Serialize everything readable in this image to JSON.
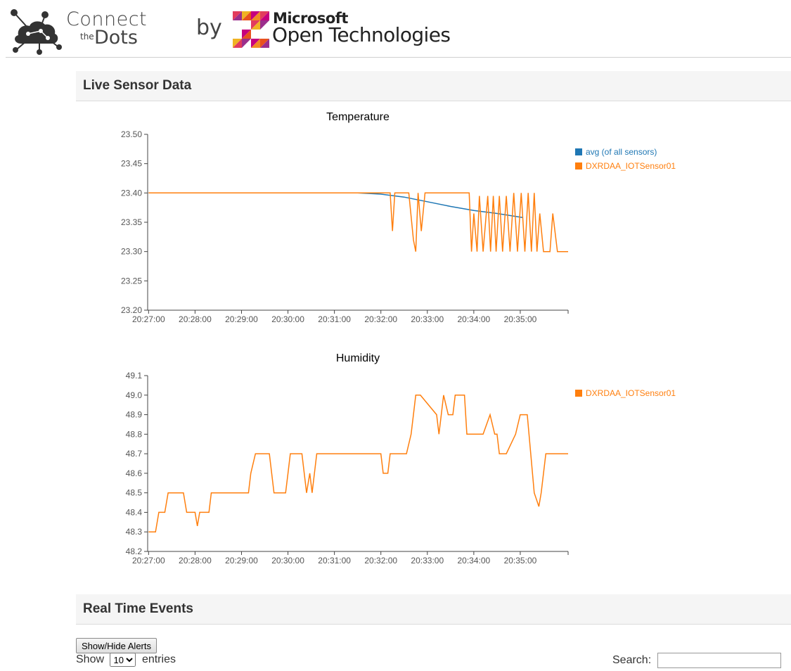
{
  "header": {
    "brand_connect": "Connect",
    "brand_the": "the",
    "brand_dots": "Dots",
    "by": "by",
    "ms_name": "Microsoft",
    "ms_sub": "Open Technologies"
  },
  "sections": {
    "live": "Live Sensor Data",
    "realtime": "Real Time Events"
  },
  "controls": {
    "show_hide_label": "Show/Hide Alerts",
    "show_label": "Show",
    "entries_value": "10",
    "entries_label": "entries",
    "search_label": "Search:",
    "search_value": ""
  },
  "colors": {
    "avg": "#1f77b4",
    "sensor": "#ff7f0e",
    "axis": "#444444",
    "legend_avg_text": "#1f77b4"
  },
  "chart_data": [
    {
      "type": "line",
      "title": "Temperature",
      "x_ticks": [
        "20:27:00",
        "20:28:00",
        "20:29:00",
        "20:30:00",
        "20:31:00",
        "20:32:00",
        "20:33:00",
        "20:34:00",
        "20:35:00"
      ],
      "y_ticks": [
        "23.20",
        "23.25",
        "23.30",
        "23.35",
        "23.40",
        "23.45",
        "23.50"
      ],
      "xlim": [
        -0.02,
        9.03
      ],
      "ylim": [
        23.2,
        23.5
      ],
      "legend": "right",
      "series": [
        {
          "name": "avg (of all sensors)",
          "color": "#1f77b4",
          "x": [
            0,
            1,
            2,
            3,
            4,
            4.5,
            5,
            5.5,
            6,
            6.5,
            7,
            7.5,
            8.05
          ],
          "y": [
            23.4,
            23.4,
            23.4,
            23.4,
            23.4,
            23.4,
            23.398,
            23.393,
            23.385,
            23.377,
            23.37,
            23.365,
            23.358
          ]
        },
        {
          "name": "DXRDAA_IOTSensor01",
          "color": "#ff7f0e",
          "x": [
            0,
            4,
            5.2,
            5.25,
            5.3,
            5.35,
            5.4,
            5.6,
            5.7,
            5.75,
            5.8,
            5.87,
            5.95,
            6.0,
            6.05,
            6.12,
            6.15,
            6.25,
            6.33,
            6.4,
            6.45,
            6.6,
            6.9,
            6.95,
            7.0,
            7.07,
            7.12,
            7.2,
            7.3,
            7.36,
            7.42,
            7.48,
            7.55,
            7.62,
            7.7,
            7.78,
            7.86,
            7.94,
            8.02,
            8.1,
            8.17,
            8.24,
            8.3,
            8.36,
            8.42,
            8.5,
            8.58,
            8.64,
            8.7,
            8.8,
            8.9,
            9.03
          ],
          "y": [
            23.4,
            23.4,
            23.4,
            23.335,
            23.4,
            23.4,
            23.4,
            23.4,
            23.32,
            23.3,
            23.4,
            23.335,
            23.4,
            23.4,
            23.4,
            23.4,
            23.4,
            23.4,
            23.4,
            23.4,
            23.4,
            23.4,
            23.4,
            23.3,
            23.365,
            23.3,
            23.395,
            23.3,
            23.395,
            23.3,
            23.395,
            23.3,
            23.395,
            23.3,
            23.395,
            23.3,
            23.4,
            23.3,
            23.4,
            23.3,
            23.4,
            23.3,
            23.4,
            23.3,
            23.365,
            23.3,
            23.3,
            23.3,
            23.365,
            23.3,
            23.3,
            23.3
          ]
        }
      ]
    },
    {
      "type": "line",
      "title": "Humidity",
      "x_ticks": [
        "20:27:00",
        "20:28:00",
        "20:29:00",
        "20:30:00",
        "20:31:00",
        "20:32:00",
        "20:33:00",
        "20:34:00",
        "20:35:00"
      ],
      "y_ticks": [
        "48.2",
        "48.3",
        "48.4",
        "48.5",
        "48.6",
        "48.7",
        "48.8",
        "48.9",
        "49.0",
        "49.1"
      ],
      "xlim": [
        -0.02,
        9.03
      ],
      "ylim": [
        48.2,
        49.1
      ],
      "legend": "right",
      "series": [
        {
          "name": "DXRDAA_IOTSensor01",
          "color": "#ff7f0e",
          "x": [
            0,
            0.15,
            0.22,
            0.35,
            0.42,
            0.75,
            0.82,
            1.0,
            1.05,
            1.1,
            1.15,
            1.3,
            1.35,
            1.4,
            1.45,
            2.15,
            2.2,
            2.3,
            2.35,
            2.6,
            2.7,
            2.75,
            2.95,
            3.0,
            3.05,
            3.1,
            3.3,
            3.35,
            3.4,
            3.47,
            3.52,
            3.57,
            3.62,
            3.7,
            4.0,
            5.0,
            5.05,
            5.15,
            5.2,
            5.55,
            5.65,
            5.7,
            5.75,
            5.85,
            6.2,
            6.25,
            6.3,
            6.35,
            6.45,
            6.55,
            6.6,
            6.8,
            6.85,
            7.0,
            7.2,
            7.35,
            7.45,
            7.5,
            7.55,
            7.65,
            7.7,
            7.9,
            8.0,
            8.05,
            8.15,
            8.3,
            8.4,
            8.45,
            8.55,
            8.6,
            8.8,
            9.03
          ],
          "y": [
            48.3,
            48.3,
            48.4,
            48.4,
            48.5,
            48.5,
            48.4,
            48.4,
            48.33,
            48.4,
            48.4,
            48.4,
            48.5,
            48.5,
            48.5,
            48.5,
            48.6,
            48.7,
            48.7,
            48.7,
            48.5,
            48.5,
            48.5,
            48.6,
            48.7,
            48.7,
            48.7,
            48.6,
            48.5,
            48.6,
            48.5,
            48.6,
            48.7,
            48.7,
            48.7,
            48.7,
            48.6,
            48.6,
            48.7,
            48.7,
            48.8,
            48.9,
            49.0,
            49.0,
            48.9,
            48.8,
            48.9,
            49.0,
            48.9,
            48.9,
            49.0,
            49.0,
            48.8,
            48.8,
            48.8,
            48.9,
            48.8,
            48.8,
            48.7,
            48.7,
            48.7,
            48.8,
            48.9,
            48.9,
            48.9,
            48.5,
            48.43,
            48.5,
            48.7,
            48.7,
            48.7,
            48.7
          ]
        }
      ]
    }
  ]
}
